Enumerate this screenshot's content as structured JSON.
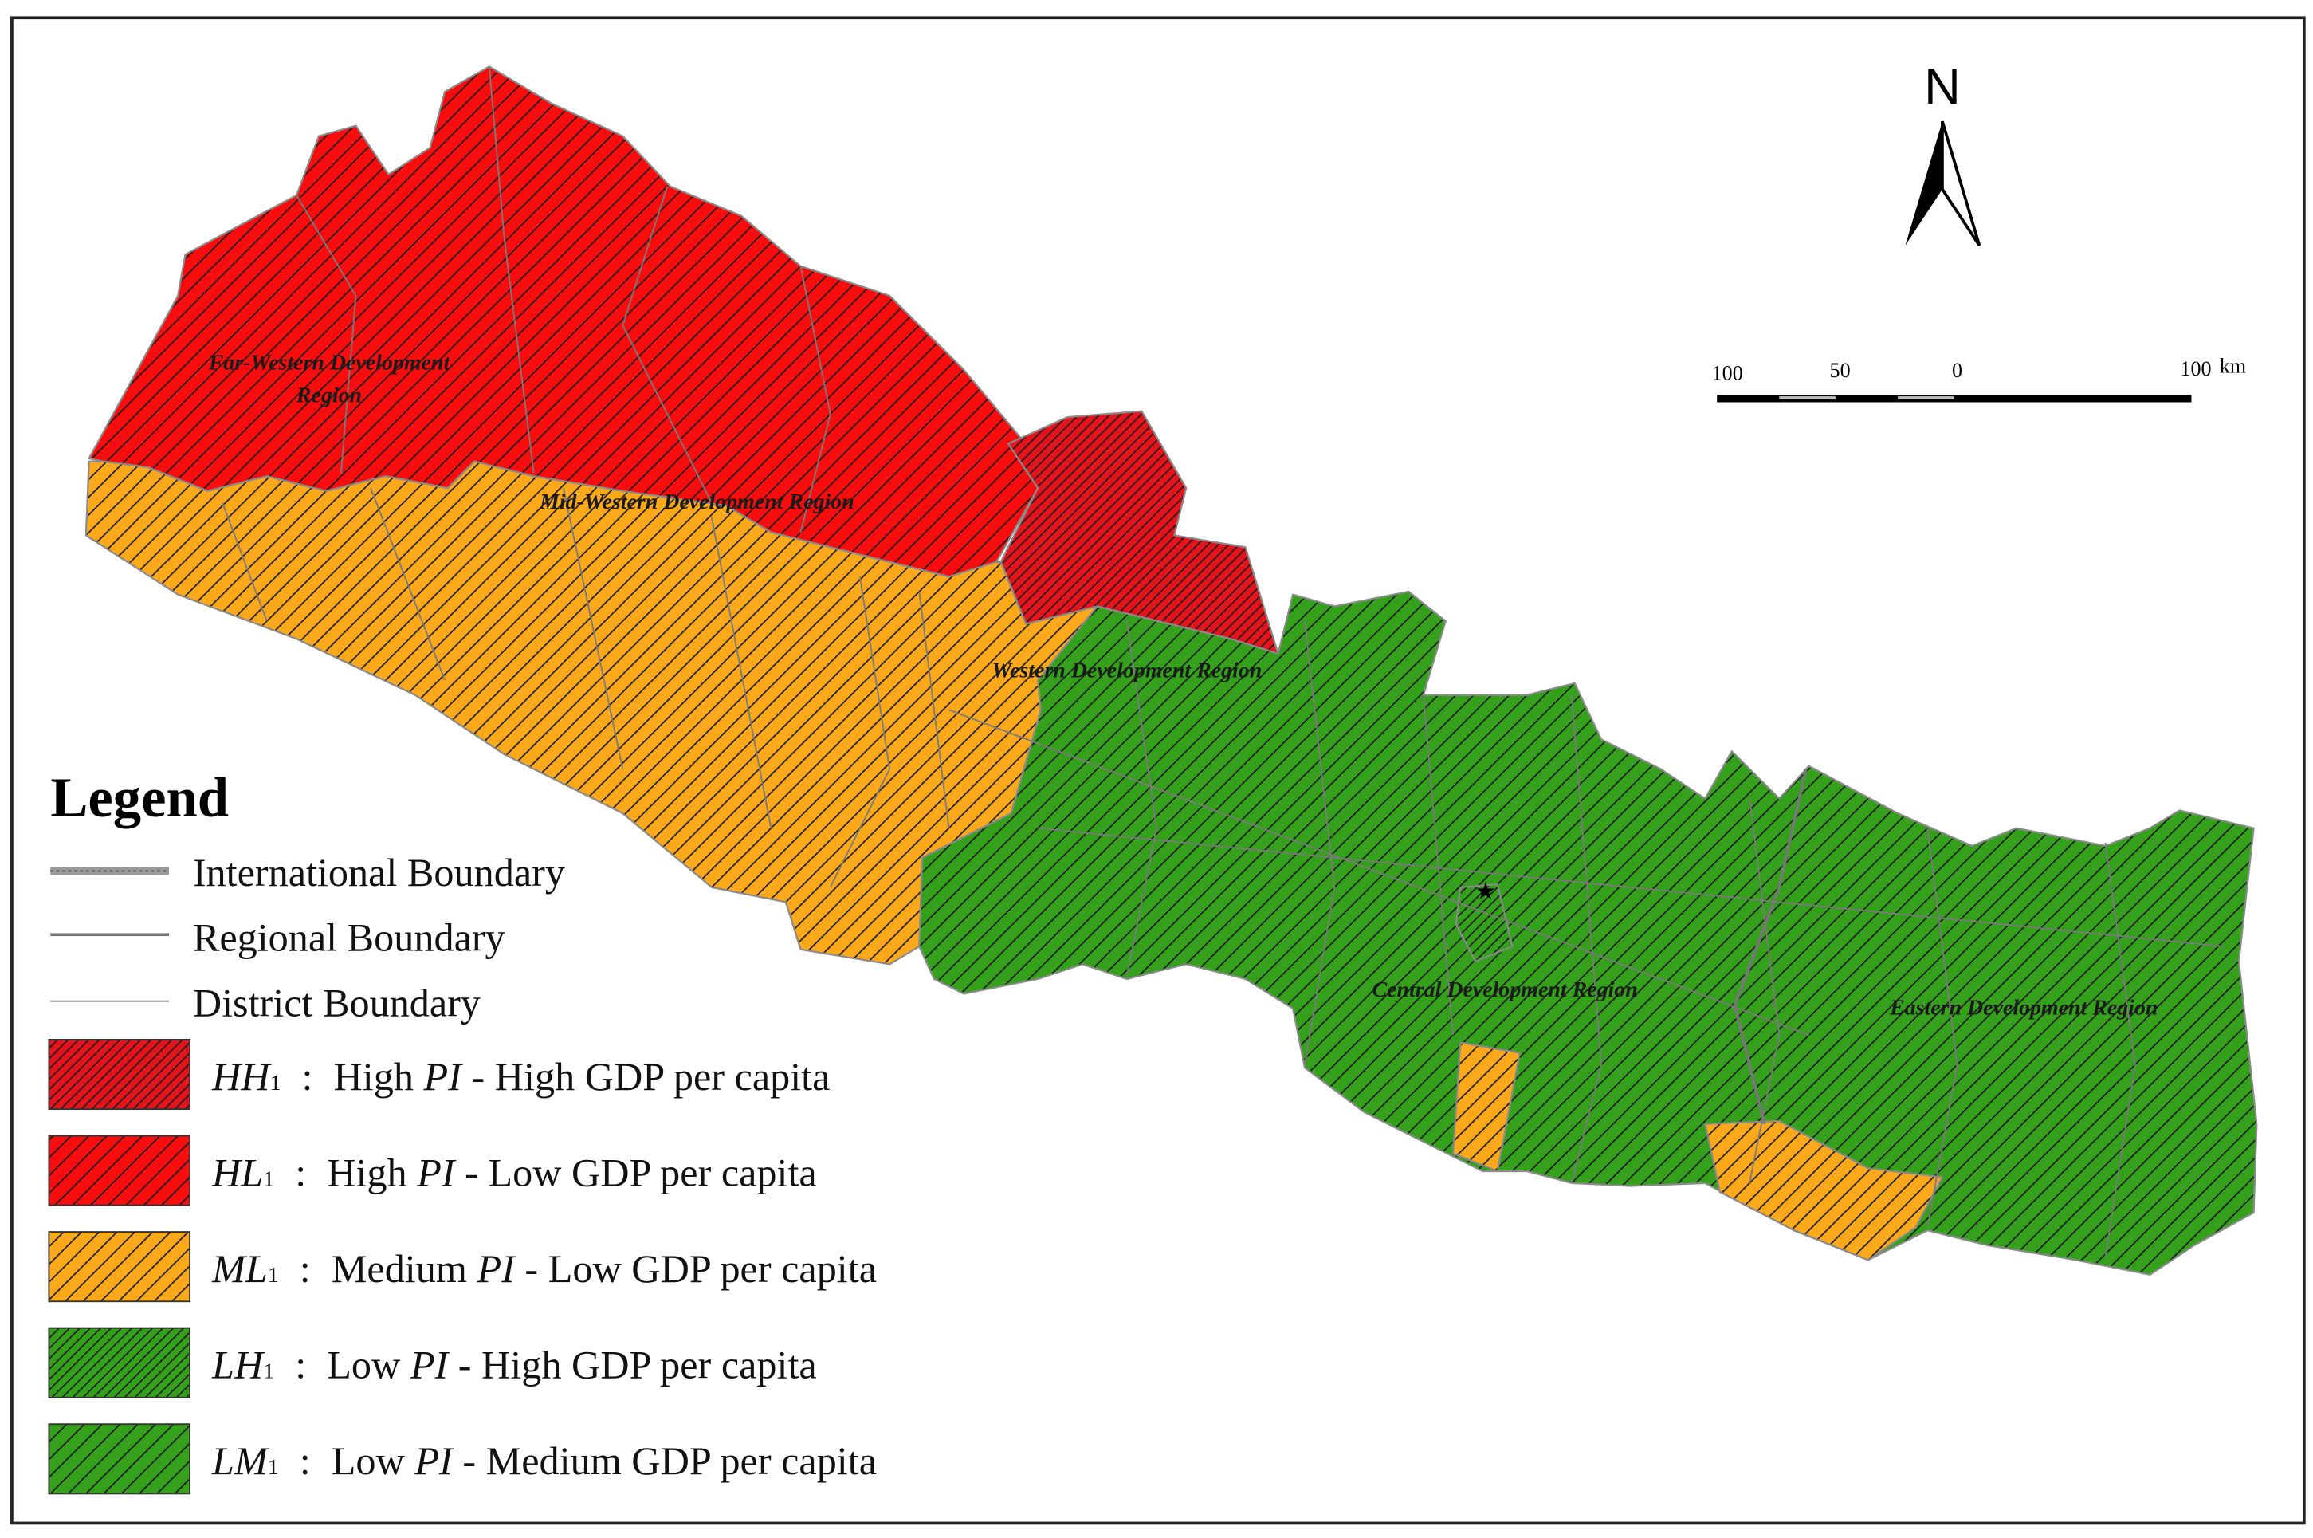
{
  "north_label": "N",
  "scale_bar": {
    "labels": [
      "100",
      "50",
      "0",
      "100"
    ],
    "unit": "km"
  },
  "region_labels": [
    "Far-Western Development",
    "Region",
    "Mid-Western Development Region",
    "Western Development Region",
    "Central Development Region",
    "Eastern Development Region"
  ],
  "legend": {
    "title": "Legend",
    "boundaries": [
      "International Boundary",
      "Regional Boundary",
      "District Boundary"
    ],
    "classes": [
      {
        "code": "HH",
        "subscript": "1",
        "separator": ":",
        "before": "High ",
        "italic": "PI",
        "after": " - High GDP per capita",
        "color": "#e3141b",
        "hatch": "dense"
      },
      {
        "code": "HL",
        "subscript": "1",
        "separator": ":",
        "before": "High ",
        "italic": "PI",
        "after": " - Low GDP per capita",
        "color": "#f70d0d",
        "hatch": "normal"
      },
      {
        "code": "ML",
        "subscript": "1",
        "separator": ":",
        "before": "Medium ",
        "italic": "PI",
        "after": " - Low GDP per capita",
        "color": "#fba81a",
        "hatch": "normal"
      },
      {
        "code": "LH",
        "subscript": "1",
        "separator": ":",
        "before": "Low ",
        "italic": "PI",
        "after": " - High GDP per capita",
        "color": "#34a01c",
        "hatch": "dense"
      },
      {
        "code": "LM",
        "subscript": "1",
        "separator": ":",
        "before": "Low ",
        "italic": "PI",
        "after": " - Medium GDP per capita",
        "color": "#34a01c",
        "hatch": "normal"
      }
    ]
  }
}
